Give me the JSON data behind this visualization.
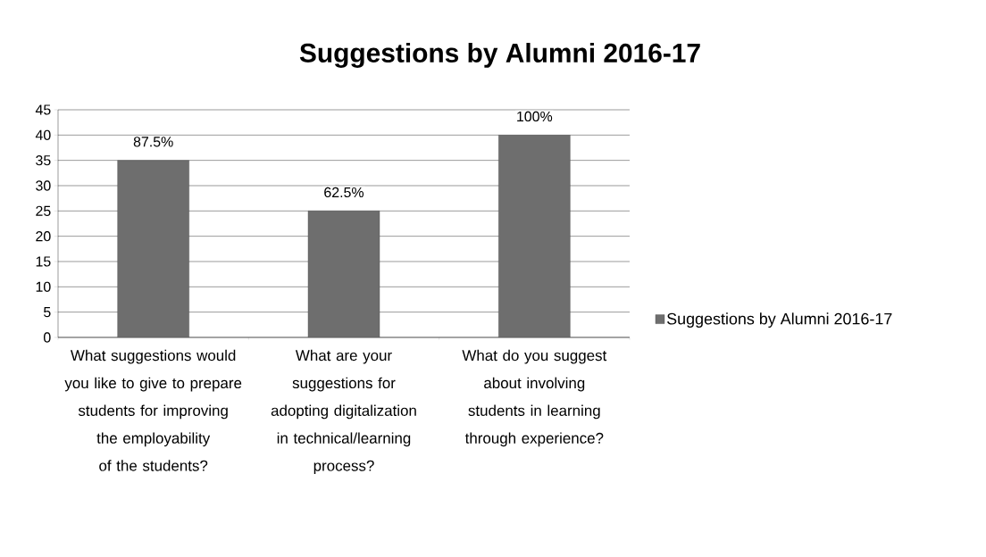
{
  "chart_data": {
    "type": "bar",
    "title": "Suggestions by Alumni 2016-17",
    "categories": [
      "What suggestions would you like to give to prepare students for improving the employability of the students?",
      "What are your suggestions for adopting digitalization in technical/learning process?",
      "What do you suggest about involving students in learning through experience?"
    ],
    "series": [
      {
        "name": "Suggestions by Alumni 2016-17",
        "color": "#6e6e6e",
        "values": [
          35,
          25,
          40
        ]
      }
    ],
    "annotations": [
      {
        "text": "87.5%",
        "x": "What suggestions would you like to give to prepare students for improving the employability of the students?",
        "y": 35
      },
      {
        "text": "62.5%",
        "x": "What are your suggestions for adopting digitalization in technical/learning process?",
        "y": 25
      },
      {
        "text": "100%",
        "x": "What do you suggest about involving students in learning through experience?",
        "y": 40
      }
    ],
    "ylim": [
      0,
      45
    ],
    "yticks": [
      0,
      5,
      10,
      15,
      20,
      25,
      30,
      35,
      40,
      45
    ],
    "grid": "y",
    "legend": "right"
  }
}
